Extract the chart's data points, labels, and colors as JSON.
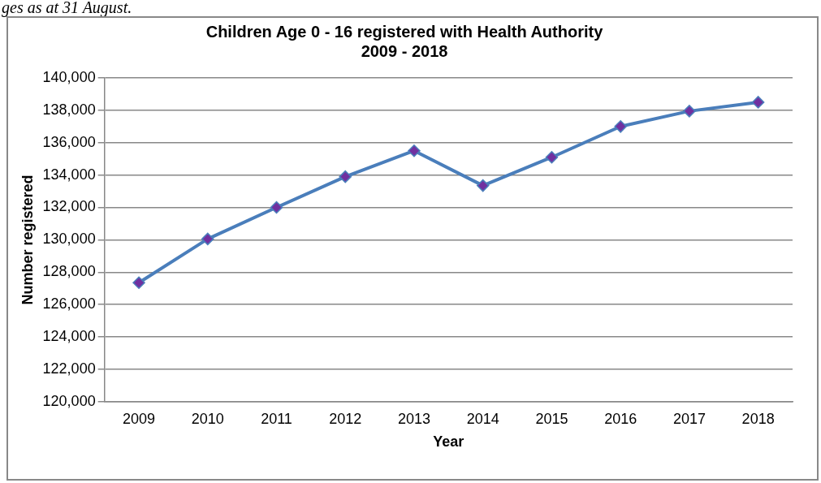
{
  "chart_data": {
    "type": "line",
    "title": "Children Age 0 - 16 registered with Health Authority\n2009 - 2018",
    "xlabel": "Year",
    "ylabel": "Number registered",
    "annotations": [
      "ges as at 31 August."
    ],
    "categories": [
      "2009",
      "2010",
      "2011",
      "2012",
      "2013",
      "2014",
      "2015",
      "2016",
      "2017",
      "2018"
    ],
    "series": [
      {
        "color": "#4a7ebb",
        "colors": [
          "#7030a0",
          "#7030a0",
          "#7030a0",
          "#7030a0",
          "#7030a0",
          "#7030a0",
          "#7030a0",
          "#7030a0",
          "#7030a0",
          "#7030a0"
        ],
        "values": [
          127350,
          130050,
          132000,
          133900,
          135500,
          133350,
          135100,
          137000,
          137950,
          138500
        ]
      }
    ],
    "marker": "diamond",
    "ylim": [
      120000,
      140000
    ],
    "yticks": [
      {
        "value": 120000,
        "label": "120,000"
      },
      {
        "value": 122000,
        "label": "122,000"
      },
      {
        "value": 124000,
        "label": "124,000"
      },
      {
        "value": 126000,
        "label": "126,000"
      },
      {
        "value": 128000,
        "label": "128,000"
      },
      {
        "value": 130000,
        "label": "130,000"
      },
      {
        "value": 132000,
        "label": "132,000"
      },
      {
        "value": 134000,
        "label": "134,000"
      },
      {
        "value": 136000,
        "label": "136,000"
      },
      {
        "value": 138000,
        "label": "138,000"
      },
      {
        "value": 140000,
        "label": "140,000"
      }
    ],
    "grid": "y",
    "legend": false
  }
}
